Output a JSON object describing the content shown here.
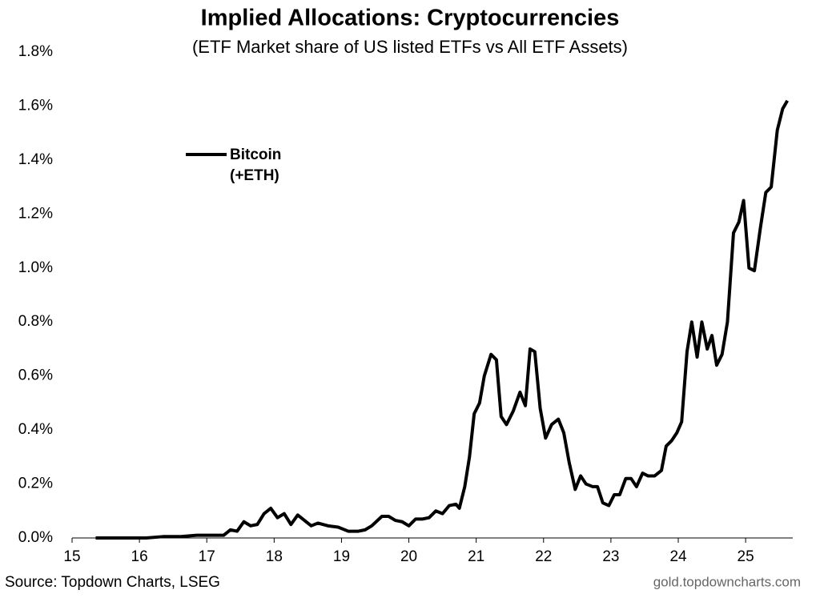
{
  "chart_data": {
    "type": "line",
    "title": "Implied Allocations: Cryptocurrencies",
    "subtitle": "(ETF Market share of US listed ETFs vs All ETF Assets)",
    "source": "Source: Topdown Charts, LSEG",
    "watermark": "gold.topdowncharts.com",
    "xlim": [
      15,
      25.7
    ],
    "xticks": [
      15,
      16,
      17,
      18,
      19,
      20,
      21,
      22,
      23,
      24,
      25
    ],
    "ylim": [
      0,
      1.8
    ],
    "yticks": [
      {
        "value": 0,
        "label": "0.0%"
      },
      {
        "value": 0.2,
        "label": "0.2%"
      },
      {
        "value": 0.4,
        "label": "0.4%"
      },
      {
        "value": 0.6,
        "label": "0.6%"
      },
      {
        "value": 0.8,
        "label": "0.8%"
      },
      {
        "value": 1.0,
        "label": "1.0%"
      },
      {
        "value": 1.2,
        "label": "1.2%"
      },
      {
        "value": 1.4,
        "label": "1.4%"
      },
      {
        "value": 1.6,
        "label": "1.6%"
      },
      {
        "value": 1.8,
        "label": "1.8%"
      }
    ],
    "grid": false,
    "legend": "upper left",
    "x": [
      15.35,
      15.6,
      15.85,
      16.1,
      16.35,
      16.6,
      16.85,
      17.1,
      17.25,
      17.35,
      17.45,
      17.55,
      17.65,
      17.75,
      17.85,
      17.95,
      18.05,
      18.15,
      18.25,
      18.35,
      18.45,
      18.55,
      18.65,
      18.8,
      18.95,
      19.1,
      19.25,
      19.35,
      19.45,
      19.6,
      19.7,
      19.8,
      19.9,
      20.0,
      20.1,
      20.2,
      20.3,
      20.4,
      20.5,
      20.6,
      20.7,
      20.75,
      20.83,
      20.9,
      20.97,
      21.05,
      21.12,
      21.22,
      21.3,
      21.37,
      21.45,
      21.55,
      21.65,
      21.73,
      21.8,
      21.87,
      21.95,
      22.03,
      22.12,
      22.22,
      22.3,
      22.38,
      22.47,
      22.55,
      22.63,
      22.73,
      22.8,
      22.88,
      22.97,
      23.05,
      23.13,
      23.22,
      23.3,
      23.38,
      23.47,
      23.55,
      23.65,
      23.75,
      23.82,
      23.9,
      23.98,
      24.05,
      24.13,
      24.2,
      24.28,
      24.35,
      24.43,
      24.5,
      24.57,
      24.65,
      24.73,
      24.82,
      24.9,
      24.97,
      25.05,
      25.13,
      25.22,
      25.3,
      25.38,
      25.47,
      25.55,
      25.62
    ],
    "series": [
      {
        "name": "Bitcoin (+ETH)",
        "color": "#000000",
        "values": [
          0.0,
          0.0,
          0.0,
          0.0,
          0.005,
          0.005,
          0.01,
          0.01,
          0.01,
          0.03,
          0.025,
          0.06,
          0.045,
          0.05,
          0.09,
          0.11,
          0.075,
          0.09,
          0.05,
          0.085,
          0.065,
          0.045,
          0.055,
          0.045,
          0.04,
          0.025,
          0.025,
          0.03,
          0.045,
          0.08,
          0.08,
          0.065,
          0.06,
          0.045,
          0.07,
          0.07,
          0.075,
          0.1,
          0.09,
          0.12,
          0.125,
          0.11,
          0.19,
          0.3,
          0.46,
          0.5,
          0.6,
          0.68,
          0.66,
          0.45,
          0.42,
          0.47,
          0.54,
          0.49,
          0.7,
          0.69,
          0.48,
          0.37,
          0.42,
          0.44,
          0.39,
          0.28,
          0.18,
          0.23,
          0.2,
          0.19,
          0.19,
          0.13,
          0.12,
          0.16,
          0.16,
          0.22,
          0.22,
          0.19,
          0.24,
          0.23,
          0.23,
          0.25,
          0.34,
          0.36,
          0.39,
          0.43,
          0.69,
          0.8,
          0.67,
          0.8,
          0.7,
          0.75,
          0.64,
          0.68,
          0.8,
          1.13,
          1.17,
          1.25,
          1.0,
          0.99,
          1.15,
          1.28,
          1.3,
          1.51,
          1.59,
          1.62
        ]
      }
    ]
  }
}
